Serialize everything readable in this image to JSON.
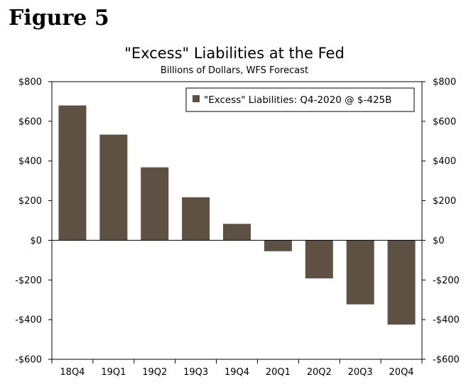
{
  "figure_label": "Figure 5",
  "chart_data": {
    "type": "bar",
    "title": "\"Excess\" Liabilities at the Fed",
    "subtitle": "Billions of Dollars, WFS Forecast",
    "categories": [
      "18Q4",
      "19Q1",
      "19Q2",
      "19Q3",
      "19Q4",
      "20Q1",
      "20Q2",
      "20Q3",
      "20Q4"
    ],
    "series": [
      {
        "name": "\"Excess\" Liabilities: Q4-2020 @ $-425B",
        "values": [
          680,
          533,
          368,
          217,
          83,
          -55,
          -192,
          -323,
          -425
        ],
        "color": "#5e5042"
      }
    ],
    "ylim": [
      -600,
      800
    ],
    "yticks": [
      -600,
      -400,
      -200,
      0,
      200,
      400,
      600,
      800
    ],
    "ytick_labels": [
      "-$600",
      "-$400",
      "-$200",
      "$0",
      "$200",
      "$400",
      "$600",
      "$800"
    ],
    "legend_position": "top-right",
    "grid": false
  }
}
